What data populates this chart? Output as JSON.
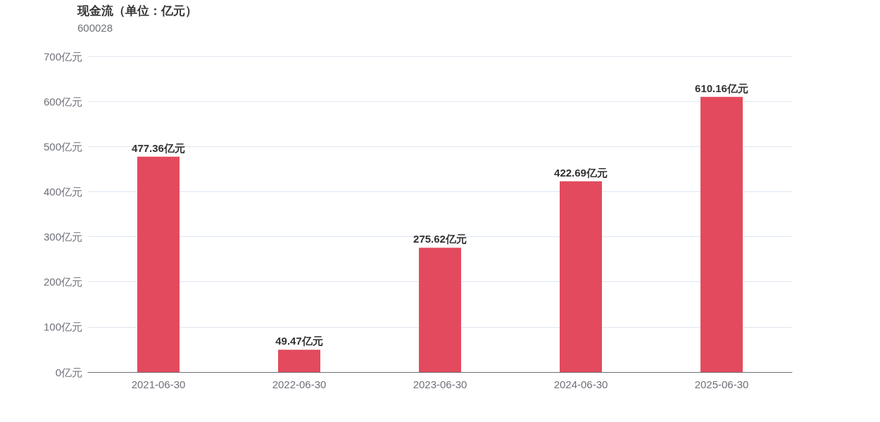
{
  "chart_data": {
    "type": "bar",
    "title": "现金流（单位：亿元）",
    "subtitle": "600028",
    "categories": [
      "2021-06-30",
      "2022-06-30",
      "2023-06-30",
      "2024-06-30",
      "2025-06-30"
    ],
    "values": [
      477.36,
      49.47,
      275.62,
      422.69,
      610.16
    ],
    "value_labels": [
      "477.36亿元",
      "49.47亿元",
      "275.62亿元",
      "422.69亿元",
      "610.16亿元"
    ],
    "color": "#e34a5e",
    "ylim": [
      0,
      700
    ],
    "yticks": [
      {
        "value": 0,
        "label": "0亿元"
      },
      {
        "value": 100,
        "label": "100亿元"
      },
      {
        "value": 200,
        "label": "200亿元"
      },
      {
        "value": 300,
        "label": "300亿元"
      },
      {
        "value": 400,
        "label": "400亿元"
      },
      {
        "value": 500,
        "label": "500亿元"
      },
      {
        "value": 600,
        "label": "600亿元"
      },
      {
        "value": 700,
        "label": "700亿元"
      }
    ],
    "grid": "y"
  }
}
